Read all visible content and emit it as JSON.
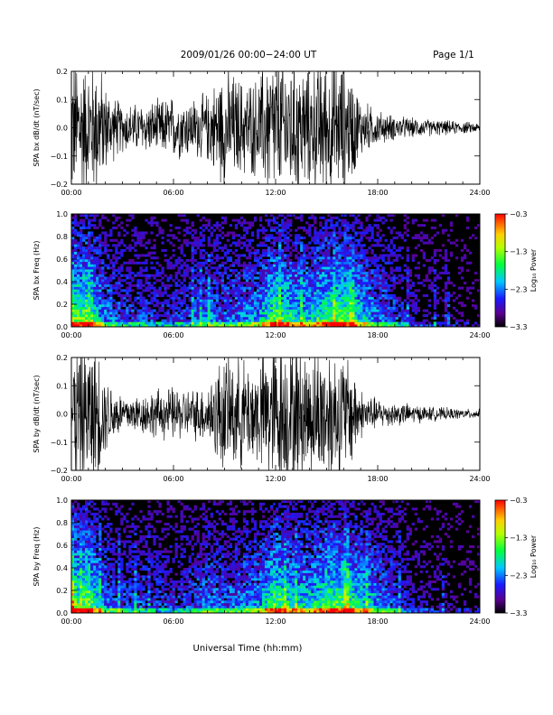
{
  "header": {
    "title": "2009/01/26  00:00−24:00 UT",
    "page": "Page 1/1"
  },
  "xlabel": "Universal Time (hh:mm)",
  "chart_data": [
    {
      "type": "line",
      "ylabel": "SPA bx dB/dt (nT/sec)",
      "xlim": [
        0,
        24
      ],
      "ylim": [
        -0.2,
        0.2
      ],
      "x_ticks": [
        "00:00",
        "06:00",
        "12:00",
        "18:00",
        "24:00"
      ],
      "y_ticks": [
        "0.2",
        "0.1",
        "0.0",
        "−0.1",
        "−0.2"
      ],
      "color": "#000000",
      "envelope": {
        "hours": [
          0,
          0.5,
          1,
          1.5,
          2,
          2.5,
          3,
          4,
          5,
          6,
          7,
          8,
          8.5,
          9,
          10,
          11,
          11.5,
          12,
          12.5,
          13,
          14,
          15,
          16,
          16.5,
          17,
          18,
          19,
          20,
          21,
          22,
          23,
          24
        ],
        "amplitude": [
          0.3,
          0.3,
          0.25,
          0.3,
          0.18,
          0.13,
          0.1,
          0.1,
          0.11,
          0.13,
          0.12,
          0.14,
          0.2,
          0.25,
          0.2,
          0.2,
          0.3,
          0.3,
          0.3,
          0.3,
          0.25,
          0.3,
          0.26,
          0.22,
          0.12,
          0.07,
          0.05,
          0.04,
          0.035,
          0.03,
          0.025,
          0.02
        ]
      }
    },
    {
      "type": "heatmap",
      "ylabel": "SPA bx Freq (Hz)",
      "xlim": [
        0,
        24
      ],
      "ylim": [
        0.0,
        1.0
      ],
      "x_ticks": [
        "00:00",
        "06:00",
        "12:00",
        "18:00",
        "24:00"
      ],
      "y_ticks": [
        "1.0",
        "0.8",
        "0.6",
        "0.4",
        "0.2",
        "0.0"
      ],
      "colorbar": {
        "label": "Log₁₀ Power",
        "ticks": [
          "−0.3",
          "−1.3",
          "−2.3",
          "−3.3"
        ],
        "range": [
          -3.3,
          -0.3
        ]
      },
      "activity": {
        "hours": [
          0,
          0.5,
          1,
          1.5,
          2,
          3,
          4,
          5,
          6,
          7,
          8,
          9,
          10,
          11,
          11.5,
          12,
          13,
          14,
          15,
          16,
          17,
          18,
          19,
          20,
          21,
          22,
          23,
          24
        ],
        "level": [
          0.9,
          0.7,
          0.85,
          0.55,
          0.4,
          0.3,
          0.3,
          0.25,
          0.25,
          0.3,
          0.4,
          0.35,
          0.4,
          0.45,
          0.6,
          0.75,
          0.6,
          0.55,
          0.7,
          0.75,
          0.55,
          0.4,
          0.3,
          0.15,
          0.1,
          0.06,
          0.04,
          0.03
        ]
      }
    },
    {
      "type": "line",
      "ylabel": "SPA by dB/dt (nT/sec)",
      "xlim": [
        0,
        24
      ],
      "ylim": [
        -0.2,
        0.2
      ],
      "x_ticks": [
        "00:00",
        "06:00",
        "12:00",
        "18:00",
        "24:00"
      ],
      "y_ticks": [
        "0.2",
        "0.1",
        "0.0",
        "−0.1",
        "−0.2"
      ],
      "color": "#000000",
      "envelope": {
        "hours": [
          0,
          0.5,
          1,
          1.5,
          2,
          2.5,
          3,
          4,
          5,
          6,
          7,
          8,
          8.5,
          9,
          10,
          11,
          11.5,
          12,
          12.5,
          13,
          14,
          15,
          16,
          16.5,
          17,
          18,
          19,
          20,
          21,
          22,
          23,
          24
        ],
        "amplitude": [
          0.3,
          0.3,
          0.28,
          0.3,
          0.15,
          0.12,
          0.08,
          0.08,
          0.1,
          0.11,
          0.1,
          0.12,
          0.2,
          0.25,
          0.22,
          0.22,
          0.3,
          0.3,
          0.3,
          0.3,
          0.25,
          0.3,
          0.25,
          0.22,
          0.1,
          0.06,
          0.05,
          0.04,
          0.03,
          0.025,
          0.02,
          0.02
        ]
      }
    },
    {
      "type": "heatmap",
      "ylabel": "SPA by Freq (Hz)",
      "xlim": [
        0,
        24
      ],
      "ylim": [
        0.0,
        1.0
      ],
      "x_ticks": [
        "00:00",
        "06:00",
        "12:00",
        "18:00",
        "24:00"
      ],
      "y_ticks": [
        "1.0",
        "0.8",
        "0.6",
        "0.4",
        "0.2",
        "0.0"
      ],
      "colorbar": {
        "label": "Log₁₀ Power",
        "ticks": [
          "−0.3",
          "−1.3",
          "−2.3",
          "−3.3"
        ],
        "range": [
          -3.3,
          -0.3
        ]
      },
      "activity": {
        "hours": [
          0,
          0.5,
          1,
          1.5,
          2,
          3,
          4,
          5,
          6,
          7,
          8,
          9,
          10,
          11,
          11.5,
          12,
          13,
          14,
          15,
          16,
          17,
          18,
          19,
          20,
          21,
          22,
          23,
          24
        ],
        "level": [
          0.9,
          0.7,
          0.85,
          0.55,
          0.4,
          0.3,
          0.3,
          0.25,
          0.25,
          0.3,
          0.4,
          0.35,
          0.4,
          0.45,
          0.6,
          0.75,
          0.6,
          0.55,
          0.7,
          0.75,
          0.6,
          0.45,
          0.3,
          0.15,
          0.1,
          0.06,
          0.04,
          0.03
        ]
      }
    }
  ]
}
